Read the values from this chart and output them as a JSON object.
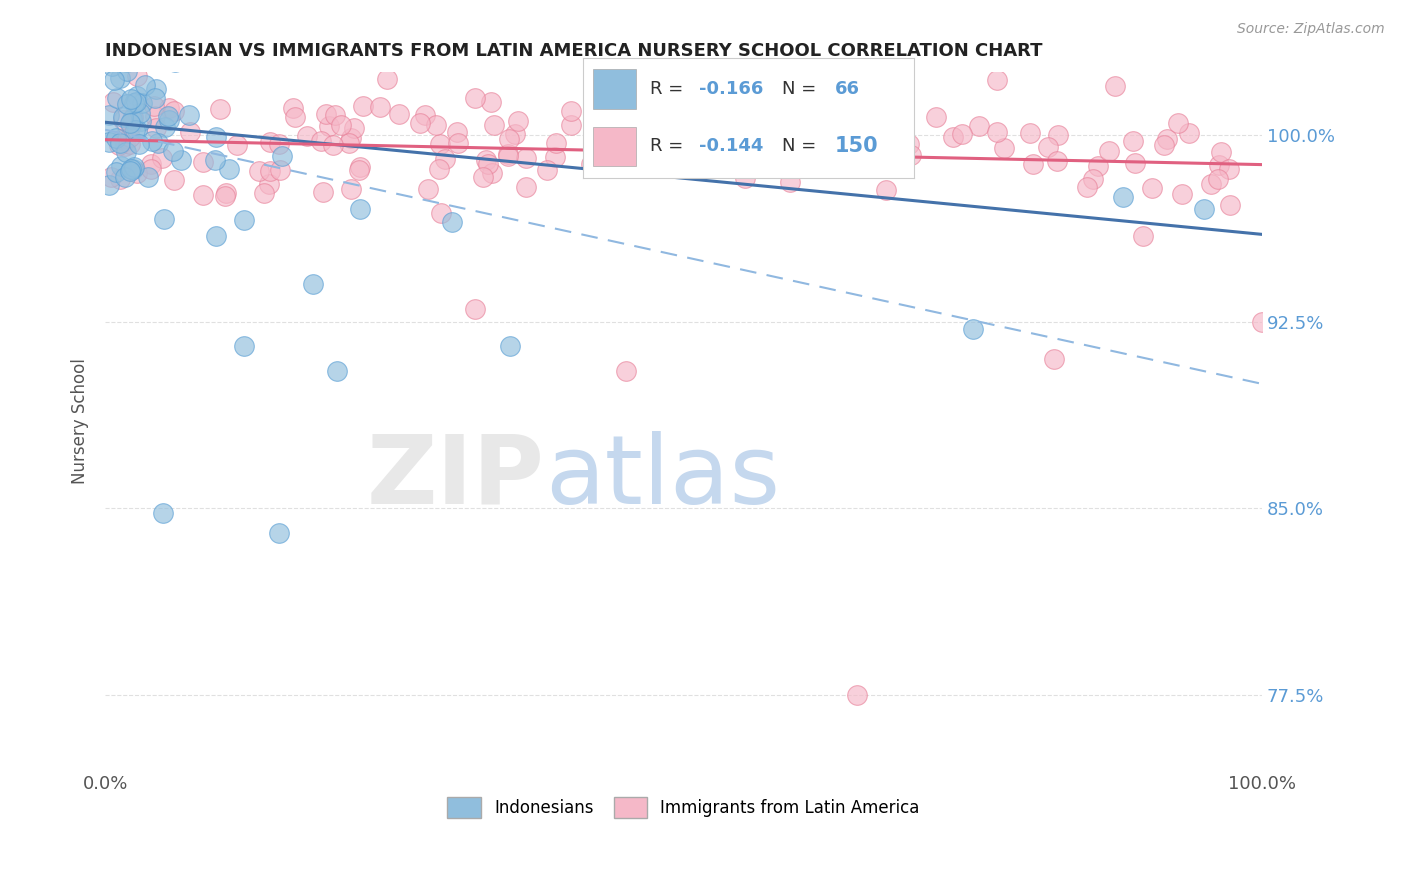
{
  "title": "INDONESIAN VS IMMIGRANTS FROM LATIN AMERICA NURSERY SCHOOL CORRELATION CHART",
  "source": "Source: ZipAtlas.com",
  "ylabel": "Nursery School",
  "x_min": 0.0,
  "x_max": 100.0,
  "y_min": 74.5,
  "y_max": 102.5,
  "y_ticks": [
    77.5,
    85.0,
    92.5,
    100.0
  ],
  "y_tick_labels": [
    "77.5%",
    "85.0%",
    "92.5%",
    "100.0%"
  ],
  "x_ticks": [
    0.0,
    100.0
  ],
  "x_tick_labels": [
    "0.0%",
    "100.0%"
  ],
  "blue_color": "#90bedd",
  "blue_edge_color": "#5a9fd4",
  "pink_color": "#f5b8c8",
  "pink_edge_color": "#e8829a",
  "blue_line_color": "#4472aa",
  "pink_line_color": "#e06080",
  "dashed_line_color": "#90b8e0",
  "background_color": "#ffffff",
  "grid_color": "#e0e0e0",
  "right_tick_color": "#5b9bd5",
  "legend_box_color": "#dddddd",
  "blue_trend": [
    100.5,
    96.0
  ],
  "pink_trend": [
    99.8,
    98.8
  ],
  "dashed_trend": [
    100.2,
    90.0
  ]
}
